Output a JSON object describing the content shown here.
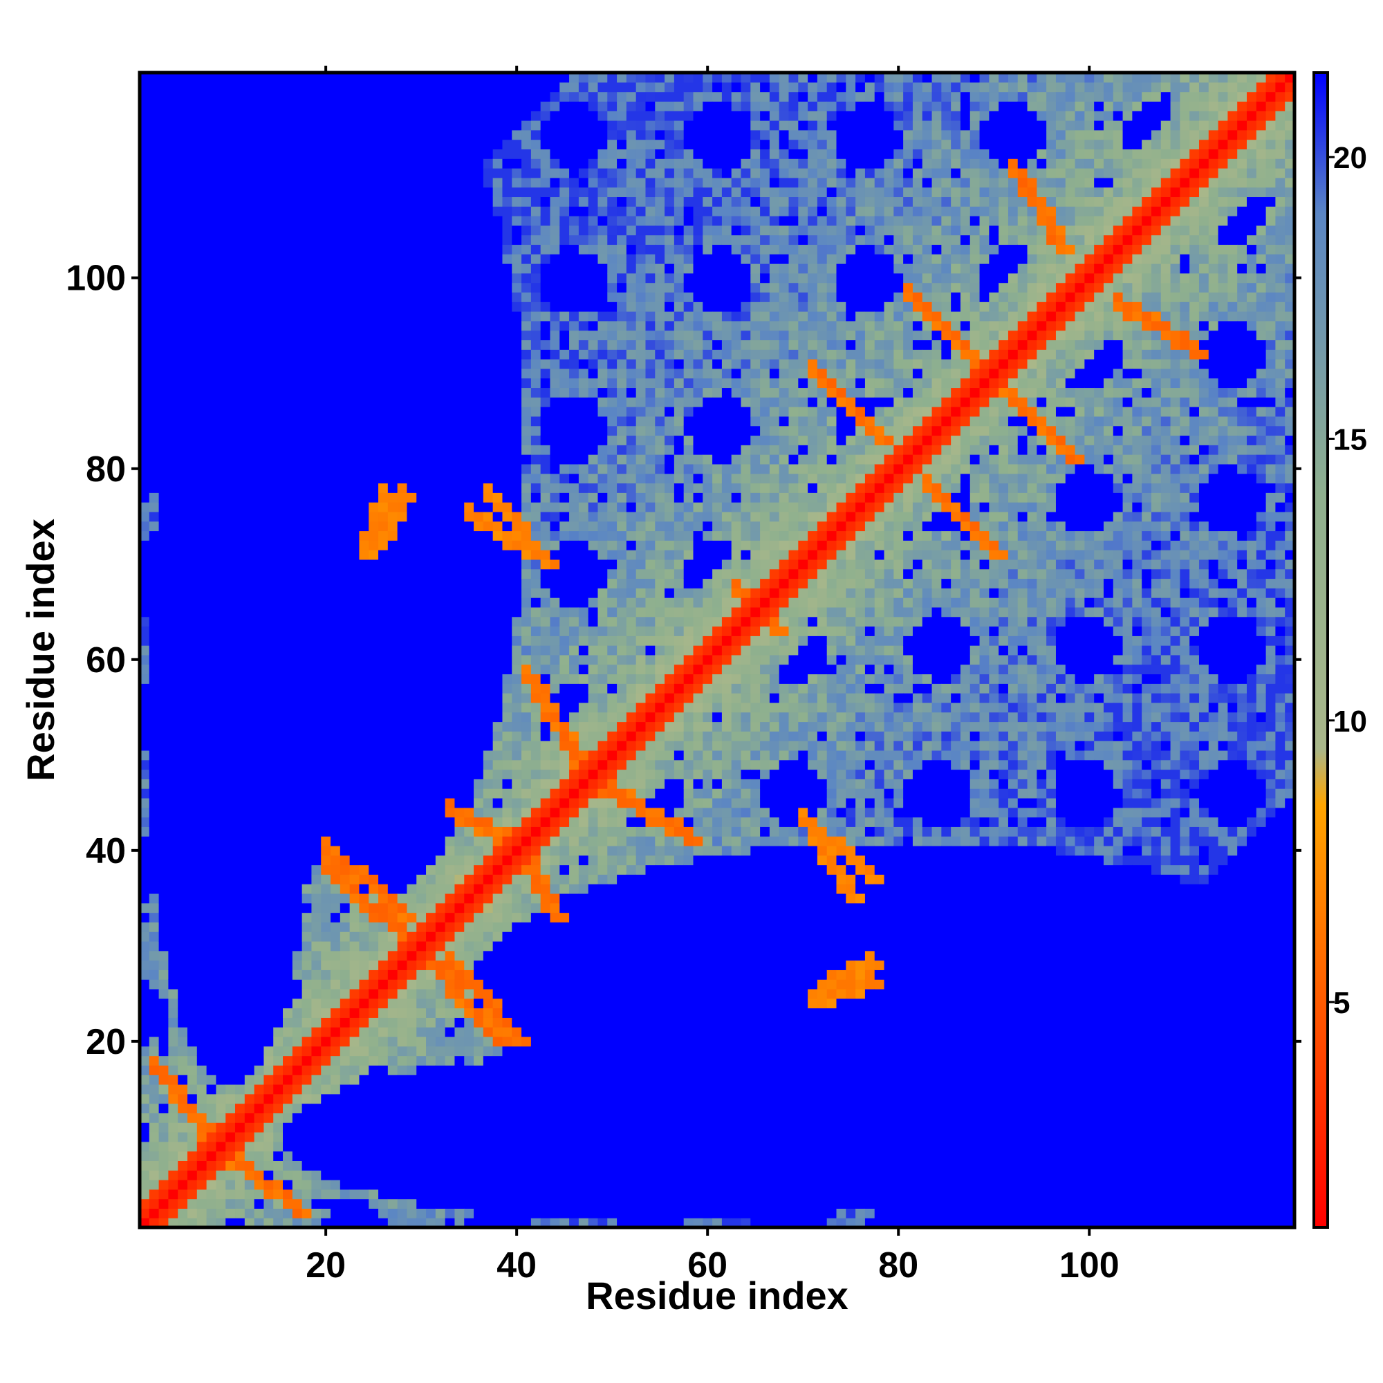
{
  "chart_data": {
    "type": "heatmap",
    "title": "",
    "xlabel": "Residue index",
    "ylabel": "Residue index",
    "x_ticks": [
      20,
      40,
      60,
      80,
      100
    ],
    "y_ticks": [
      20,
      40,
      60,
      80,
      100
    ],
    "xlim": [
      1,
      121
    ],
    "ylim": [
      1,
      121
    ],
    "matrix_size": 121,
    "colorbar": {
      "ticks": [
        5,
        10,
        15,
        20
      ],
      "range": [
        1,
        21.5
      ],
      "stops": [
        {
          "value": 1,
          "color": "#ff0000"
        },
        {
          "value": 5.5,
          "color": "#ff6600"
        },
        {
          "value": 8.5,
          "color": "#ffa500"
        },
        {
          "value": 9.5,
          "color": "#a9b78a"
        },
        {
          "value": 14,
          "color": "#8fb08e"
        },
        {
          "value": 19,
          "color": "#5b86c4"
        },
        {
          "value": 21.5,
          "color": "#0000ff"
        }
      ]
    },
    "grid": false,
    "description_of_values": "Symmetric residue-residue distance map; diagonal ~1 (red), secondary contacts 5-8 (orange), medium 10-20 (grey-green to steel blue), far >21 (blue)",
    "contact_segments": [
      {
        "from": [
          2,
          17
        ],
        "to": [
          10,
          7
        ],
        "value": 6
      },
      {
        "from": [
          17,
          2
        ],
        "to": [
          7,
          10
        ],
        "value": 6
      },
      {
        "from": [
          20,
          38
        ],
        "to": [
          32,
          27
        ],
        "value": 6
      },
      {
        "from": [
          38,
          20
        ],
        "to": [
          27,
          32
        ],
        "value": 6
      },
      {
        "from": [
          33,
          44
        ],
        "to": [
          40,
          40
        ],
        "value": 6
      },
      {
        "from": [
          44,
          33
        ],
        "to": [
          40,
          40
        ],
        "value": 6
      },
      {
        "from": [
          41,
          58
        ],
        "to": [
          47,
          48
        ],
        "value": 6
      },
      {
        "from": [
          58,
          41
        ],
        "to": [
          48,
          47
        ],
        "value": 6
      },
      {
        "from": [
          33,
          28
        ],
        "to": [
          40,
          20
        ],
        "value": 6
      },
      {
        "from": [
          28,
          33
        ],
        "to": [
          20,
          40
        ],
        "value": 6
      },
      {
        "from": [
          71,
          90
        ],
        "to": [
          78,
          83
        ],
        "value": 6
      },
      {
        "from": [
          90,
          71
        ],
        "to": [
          83,
          78
        ],
        "value": 6
      },
      {
        "from": [
          81,
          98
        ],
        "to": [
          88,
          91
        ],
        "value": 6
      },
      {
        "from": [
          98,
          81
        ],
        "to": [
          91,
          88
        ],
        "value": 6
      },
      {
        "from": [
          92,
          111
        ],
        "to": [
          97,
          103
        ],
        "value": 6
      },
      {
        "from": [
          111,
          92
        ],
        "to": [
          103,
          97
        ],
        "value": 6
      },
      {
        "from": [
          70,
          43
        ],
        "to": [
          77,
          37
        ],
        "value": 7
      },
      {
        "from": [
          43,
          70
        ],
        "to": [
          37,
          77
        ],
        "value": 7
      },
      {
        "from": [
          26,
          77
        ],
        "to": [
          24,
          71
        ],
        "value": 7
      },
      {
        "from": [
          77,
          26
        ],
        "to": [
          71,
          24
        ],
        "value": 7
      },
      {
        "from": [
          35,
          75
        ],
        "to": [
          41,
          71
        ],
        "value": 7
      },
      {
        "from": [
          75,
          35
        ],
        "to": [
          71,
          41
        ],
        "value": 7
      },
      {
        "from": [
          63,
          67
        ],
        "to": [
          66,
          64
        ],
        "value": 6
      },
      {
        "from": [
          67,
          63
        ],
        "to": [
          64,
          66
        ],
        "value": 6
      },
      {
        "from": [
          72,
          25
        ],
        "to": [
          77,
          28
        ],
        "value": 7
      },
      {
        "from": [
          25,
          72
        ],
        "to": [
          28,
          77
        ],
        "value": 7
      }
    ],
    "blank_regions": [
      {
        "center": [
          10,
          55
        ],
        "rx": 9,
        "ry": 40
      },
      {
        "center": [
          55,
          10
        ],
        "rx": 40,
        "ry": 9
      },
      {
        "center": [
          80,
          25
        ],
        "rx": 45,
        "ry": 16
      },
      {
        "center": [
          25,
          80
        ],
        "rx": 16,
        "ry": 45
      },
      {
        "center": [
          105,
          10
        ],
        "rx": 25,
        "ry": 25
      },
      {
        "center": [
          10,
          105
        ],
        "rx": 25,
        "ry": 25
      }
    ]
  }
}
